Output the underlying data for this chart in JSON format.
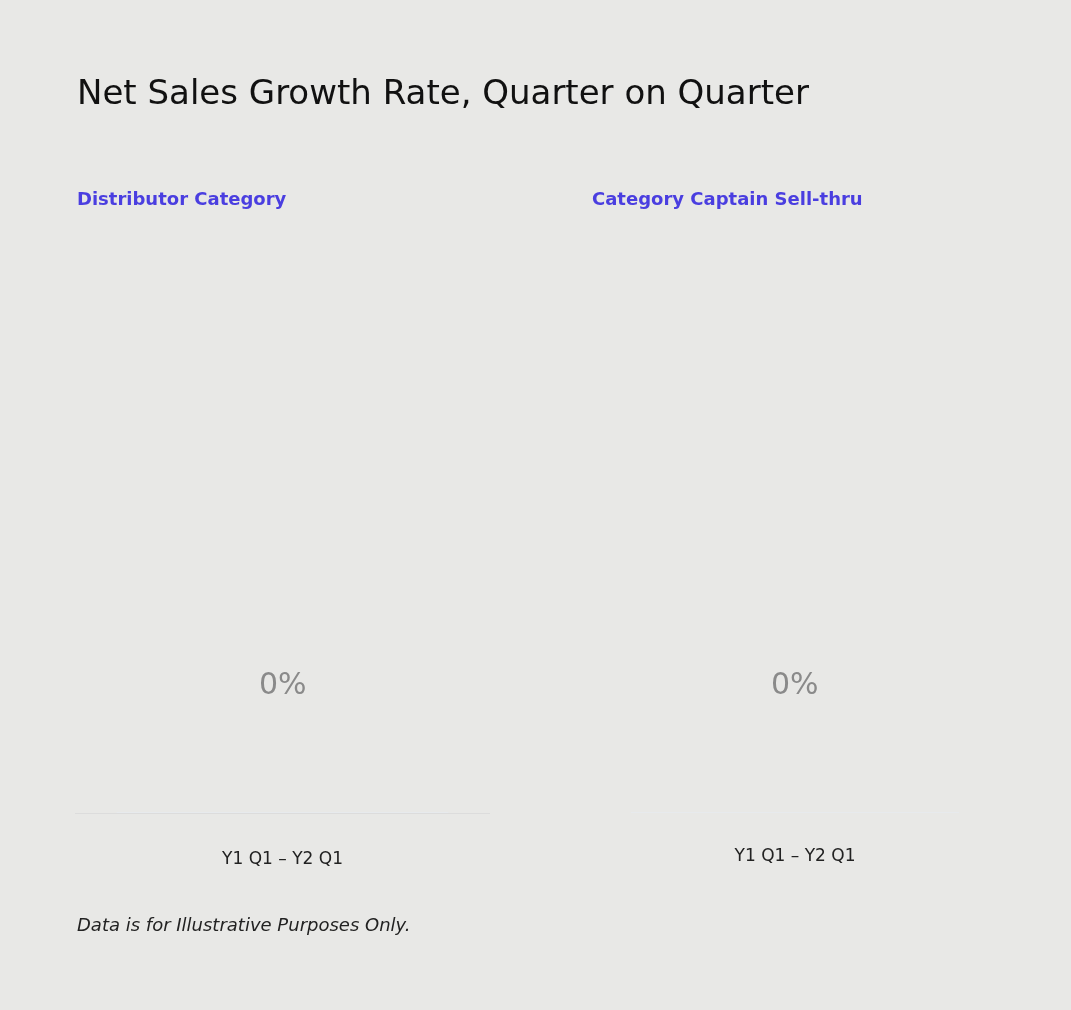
{
  "chart_data": [
    {
      "type": "other",
      "title": "Net Sales Growth Rate, Quarter on Quarter",
      "subtitle": "Distributor Category",
      "categories": [
        "Y1 Q1 – Y2 Q1"
      ],
      "values": [
        0
      ],
      "value_labels": [
        "0%"
      ],
      "annotations": [
        "Data is for Illustrative Purposes Only."
      ]
    },
    {
      "type": "other",
      "title": "Category Captain Sell-thru",
      "categories": [
        "Y1 Q1 – Y2 Q1"
      ],
      "values": [
        0
      ],
      "value_labels": [
        "0%"
      ]
    }
  ]
}
